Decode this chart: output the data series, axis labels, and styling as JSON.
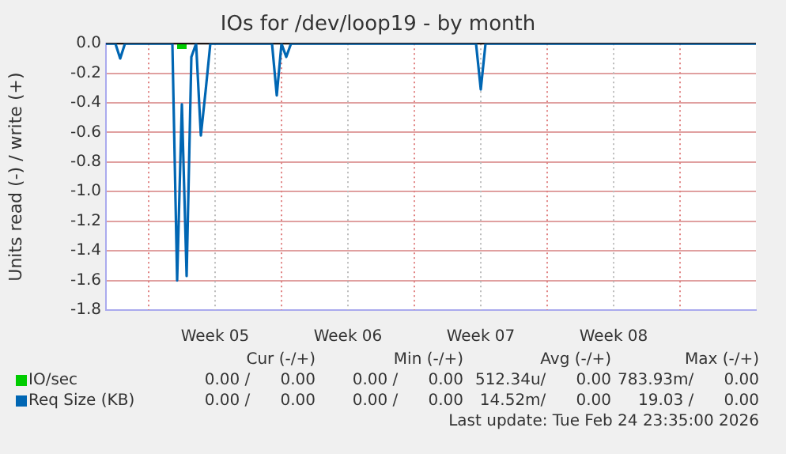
{
  "chart_data": {
    "type": "line",
    "title": "IOs for /dev/loop19 - by month",
    "ylabel": "Units read (-) / write (+)",
    "categories": [
      null,
      null,
      null,
      null,
      null,
      null,
      null,
      null,
      null,
      null,
      null,
      null,
      null,
      null,
      null,
      null,
      null,
      null,
      null,
      null,
      null,
      null,
      null,
      "Week 05",
      null,
      null,
      null,
      null,
      null,
      null,
      null,
      null,
      null,
      null,
      null,
      null,
      null,
      null,
      null,
      null,
      null,
      null,
      null,
      null,
      null,
      null,
      null,
      null,
      null,
      null,
      null,
      "Week 06",
      null,
      null,
      null,
      null,
      null,
      null,
      null,
      null,
      null,
      null,
      null,
      null,
      null,
      null,
      null,
      null,
      null,
      null,
      null,
      null,
      null,
      null,
      null,
      null,
      null,
      null,
      null,
      "Week 07",
      null,
      null,
      null,
      null,
      null,
      null,
      null,
      null,
      null,
      null,
      null,
      null,
      null,
      null,
      null,
      null,
      null,
      null,
      null,
      null,
      null,
      null,
      null,
      null,
      null,
      null,
      null,
      "Week 08",
      null,
      null,
      null,
      null,
      null,
      null,
      null,
      null,
      null,
      null,
      null,
      null,
      null,
      null,
      null,
      null,
      null,
      null,
      null,
      null,
      null,
      null,
      null,
      null,
      null,
      null,
      null,
      null,
      null,
      null
    ],
    "ylim": [
      -1.8,
      0
    ],
    "yticks": [
      {
        "value": 0,
        "label": "0.0"
      },
      {
        "value": -0.2,
        "label": "-0.2"
      },
      {
        "value": -0.4,
        "label": "-0.4"
      },
      {
        "value": -0.6,
        "label": "-0.6"
      },
      {
        "value": -0.8,
        "label": "-0.8"
      },
      {
        "value": -1,
        "label": "-1.0"
      },
      {
        "value": -1.2,
        "label": "-1.2"
      },
      {
        "value": -1.4,
        "label": "-1.4"
      },
      {
        "value": -1.6,
        "label": "-1.6"
      },
      {
        "value": -1.8,
        "label": "-1.8"
      }
    ],
    "grid": true,
    "legend": "bottom",
    "marker": "none",
    "line_style": "solid",
    "ref_lines": [
      {
        "axis": "y",
        "value": 0,
        "color": "#000000"
      }
    ],
    "series": [
      {
        "name": "IO/sec",
        "color": "#00cc00",
        "values": [
          null,
          null,
          null,
          null,
          null,
          null,
          null,
          null,
          null,
          null,
          null,
          null,
          null,
          null,
          null,
          -0.02,
          -0.02,
          -0.02,
          null,
          null,
          null,
          null,
          null,
          null,
          null,
          null,
          null,
          null,
          null,
          null,
          null,
          null,
          null,
          null,
          null,
          null,
          null,
          null,
          null,
          null,
          null,
          null,
          null,
          null,
          null,
          null,
          null,
          null,
          null,
          null,
          null,
          null,
          null,
          null,
          null,
          null,
          null,
          null,
          null,
          null,
          null,
          null,
          null,
          null,
          null,
          null,
          null,
          null,
          null,
          null,
          null,
          null,
          null,
          null,
          null,
          null,
          null,
          null,
          null,
          null,
          null,
          null,
          null,
          null,
          null,
          null,
          null,
          null,
          null,
          null,
          null,
          null,
          null,
          null,
          null,
          null,
          null,
          null,
          null,
          null,
          null,
          null,
          null,
          null,
          null,
          null,
          null,
          null,
          null,
          null,
          null,
          null,
          null,
          null,
          null,
          null,
          null,
          null,
          null,
          null,
          null,
          null,
          null,
          null,
          null,
          null,
          null,
          null,
          null,
          null,
          null,
          null,
          null,
          null,
          null,
          null,
          null,
          null
        ]
      },
      {
        "name": "Req Size (KB)",
        "color": "#0066b3",
        "values": [
          0,
          0,
          0,
          -0.1,
          0,
          0,
          0,
          0,
          0,
          0,
          0,
          0,
          0,
          0,
          0,
          -1.6,
          -0.41,
          -1.57,
          -0.09,
          0,
          -0.62,
          -0.32,
          0,
          0,
          0,
          0,
          0,
          0,
          0,
          0,
          0,
          0,
          0,
          0,
          0,
          0,
          -0.35,
          0,
          -0.09,
          0,
          0,
          0,
          0,
          0,
          0,
          0,
          0,
          0,
          0,
          0,
          0,
          0,
          0,
          0,
          0,
          0,
          0,
          0,
          0,
          0,
          0,
          0,
          0,
          0,
          0,
          0,
          0,
          0,
          0,
          0,
          0,
          0,
          0,
          0,
          0,
          0,
          0,
          0,
          0,
          -0.31,
          0,
          0,
          0,
          0,
          0,
          0,
          0,
          0,
          0,
          0,
          0,
          0,
          0,
          0,
          0,
          0,
          0,
          0,
          0,
          0,
          0,
          0,
          0,
          0,
          0,
          0,
          0,
          0,
          0,
          0,
          0,
          0,
          0,
          0,
          0,
          0,
          0,
          0,
          0,
          0,
          0,
          0,
          0,
          0,
          0,
          0,
          0,
          0,
          0,
          0,
          0,
          0,
          0,
          0,
          0,
          0,
          0,
          0
        ]
      }
    ],
    "annotations": [
      "Cur (-/+)",
      "Min (-/+)",
      "Avg (-/+)",
      "Max (-/+)",
      "0.00 /      0.00",
      "0.00 /      0.00",
      "512.34u/      0.00",
      "783.93m/      0.00",
      "0.00 /      0.00",
      "0.00 /      0.00",
      "14.52m/      0.00",
      "19.03 /      0.00",
      "Last update: Tue Feb 24 23:35:00 2026"
    ]
  }
}
